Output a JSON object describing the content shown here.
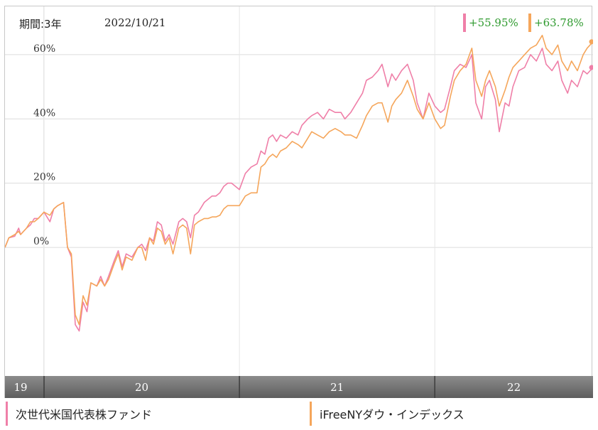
{
  "header": {
    "period_label": "期間:3年",
    "date": "2022/10/21"
  },
  "returns": [
    {
      "label": "+55.95%",
      "color": "#ef7fa8"
    },
    {
      "label": "+63.78%",
      "color": "#f5a65b"
    }
  ],
  "legend": [
    {
      "label": "次世代米国代表株ファンド",
      "color": "#ef7fa8"
    },
    {
      "label": "iFreeNYダウ・インデックス",
      "color": "#f5a65b"
    }
  ],
  "colors": {
    "pink": "#ef7fa8",
    "orange": "#f5a65b",
    "grid": "#dcdcdc",
    "axis_band": "#7a7a7a"
  },
  "chart_data": {
    "type": "line",
    "title": "",
    "xlabel": "",
    "ylabel": "",
    "x_range": [
      2019.8,
      2022.81
    ],
    "ylim": [
      -40,
      75
    ],
    "y_ticks": [
      {
        "value": 0,
        "label": "0%"
      },
      {
        "value": 20,
        "label": "20%"
      },
      {
        "value": 40,
        "label": "40%"
      },
      {
        "value": 60,
        "label": "60%"
      }
    ],
    "x_ticks": [
      {
        "value": 2019.8,
        "label": "19"
      },
      {
        "value": 2020.0,
        "label": "20"
      },
      {
        "value": 2021.0,
        "label": "21"
      },
      {
        "value": 2022.0,
        "label": "22"
      }
    ],
    "grid": true,
    "series": [
      {
        "name": "次世代米国代表株ファンド",
        "color": "#ef7fa8",
        "end_value": 55.95,
        "points": [
          [
            2019.8,
            0
          ],
          [
            2019.82,
            3
          ],
          [
            2019.85,
            3.5
          ],
          [
            2019.87,
            6
          ],
          [
            2019.88,
            4
          ],
          [
            2019.91,
            6
          ],
          [
            2019.93,
            7
          ],
          [
            2019.95,
            9
          ],
          [
            2019.97,
            9
          ],
          [
            2020.0,
            11
          ],
          [
            2020.03,
            8
          ],
          [
            2020.05,
            12
          ],
          [
            2020.07,
            13
          ],
          [
            2020.1,
            14
          ],
          [
            2020.12,
            0
          ],
          [
            2020.14,
            -3
          ],
          [
            2020.16,
            -24
          ],
          [
            2020.18,
            -26
          ],
          [
            2020.2,
            -17
          ],
          [
            2020.22,
            -20
          ],
          [
            2020.24,
            -11
          ],
          [
            2020.27,
            -12
          ],
          [
            2020.29,
            -9
          ],
          [
            2020.31,
            -12
          ],
          [
            2020.33,
            -9
          ],
          [
            2020.36,
            -4
          ],
          [
            2020.38,
            -1
          ],
          [
            2020.4,
            -6
          ],
          [
            2020.42,
            -2
          ],
          [
            2020.45,
            -3
          ],
          [
            2020.48,
            0
          ],
          [
            2020.5,
            1
          ],
          [
            2020.52,
            -1
          ],
          [
            2020.54,
            3
          ],
          [
            2020.56,
            2
          ],
          [
            2020.58,
            8
          ],
          [
            2020.6,
            7
          ],
          [
            2020.62,
            2
          ],
          [
            2020.64,
            4
          ],
          [
            2020.66,
            1
          ],
          [
            2020.69,
            8
          ],
          [
            2020.71,
            9
          ],
          [
            2020.73,
            8
          ],
          [
            2020.75,
            3
          ],
          [
            2020.77,
            10
          ],
          [
            2020.79,
            11
          ],
          [
            2020.82,
            14
          ],
          [
            2020.84,
            15
          ],
          [
            2020.86,
            16
          ],
          [
            2020.88,
            16
          ],
          [
            2020.9,
            17
          ],
          [
            2020.92,
            19
          ],
          [
            2020.94,
            20
          ],
          [
            2020.96,
            20
          ],
          [
            2021.0,
            18
          ],
          [
            2021.03,
            23
          ],
          [
            2021.06,
            25
          ],
          [
            2021.09,
            26
          ],
          [
            2021.11,
            30
          ],
          [
            2021.13,
            29
          ],
          [
            2021.15,
            34
          ],
          [
            2021.17,
            35
          ],
          [
            2021.19,
            33
          ],
          [
            2021.21,
            35
          ],
          [
            2021.24,
            34
          ],
          [
            2021.27,
            36
          ],
          [
            2021.3,
            35
          ],
          [
            2021.32,
            38
          ],
          [
            2021.35,
            40
          ],
          [
            2021.37,
            41
          ],
          [
            2021.4,
            42
          ],
          [
            2021.43,
            40
          ],
          [
            2021.46,
            43
          ],
          [
            2021.49,
            42
          ],
          [
            2021.52,
            42
          ],
          [
            2021.54,
            40
          ],
          [
            2021.57,
            42
          ],
          [
            2021.6,
            45
          ],
          [
            2021.63,
            48
          ],
          [
            2021.65,
            52
          ],
          [
            2021.68,
            53
          ],
          [
            2021.71,
            55
          ],
          [
            2021.73,
            57
          ],
          [
            2021.76,
            50
          ],
          [
            2021.78,
            54
          ],
          [
            2021.8,
            52
          ],
          [
            2021.83,
            55
          ],
          [
            2021.86,
            57
          ],
          [
            2021.89,
            52
          ],
          [
            2021.91,
            45
          ],
          [
            2021.94,
            40
          ],
          [
            2021.97,
            48
          ],
          [
            2022.0,
            44
          ],
          [
            2022.03,
            42
          ],
          [
            2022.05,
            43
          ],
          [
            2022.08,
            50
          ],
          [
            2022.1,
            55
          ],
          [
            2022.13,
            57
          ],
          [
            2022.16,
            56
          ],
          [
            2022.19,
            60
          ],
          [
            2022.21,
            45
          ],
          [
            2022.24,
            40
          ],
          [
            2022.26,
            50
          ],
          [
            2022.28,
            52
          ],
          [
            2022.31,
            46
          ],
          [
            2022.33,
            36
          ],
          [
            2022.36,
            45
          ],
          [
            2022.38,
            44
          ],
          [
            2022.4,
            50
          ],
          [
            2022.43,
            55
          ],
          [
            2022.46,
            56
          ],
          [
            2022.49,
            60
          ],
          [
            2022.52,
            58
          ],
          [
            2022.55,
            62
          ],
          [
            2022.57,
            57
          ],
          [
            2022.6,
            55
          ],
          [
            2022.63,
            58
          ],
          [
            2022.65,
            52
          ],
          [
            2022.68,
            48
          ],
          [
            2022.7,
            52
          ],
          [
            2022.73,
            50
          ],
          [
            2022.76,
            55
          ],
          [
            2022.78,
            54
          ],
          [
            2022.81,
            56
          ]
        ]
      },
      {
        "name": "iFreeNYダウ・インデックス",
        "color": "#f5a65b",
        "end_value": 63.78,
        "points": [
          [
            2019.8,
            0
          ],
          [
            2019.82,
            3
          ],
          [
            2019.85,
            4
          ],
          [
            2019.87,
            5
          ],
          [
            2019.88,
            4
          ],
          [
            2019.91,
            6
          ],
          [
            2019.93,
            8
          ],
          [
            2019.95,
            8
          ],
          [
            2019.97,
            9
          ],
          [
            2020.0,
            11
          ],
          [
            2020.03,
            10
          ],
          [
            2020.05,
            12
          ],
          [
            2020.07,
            13
          ],
          [
            2020.1,
            14
          ],
          [
            2020.12,
            0
          ],
          [
            2020.14,
            -2
          ],
          [
            2020.16,
            -21
          ],
          [
            2020.18,
            -24
          ],
          [
            2020.2,
            -15
          ],
          [
            2020.22,
            -18
          ],
          [
            2020.24,
            -11
          ],
          [
            2020.27,
            -12
          ],
          [
            2020.29,
            -10
          ],
          [
            2020.31,
            -12
          ],
          [
            2020.33,
            -10
          ],
          [
            2020.36,
            -5
          ],
          [
            2020.38,
            -2
          ],
          [
            2020.4,
            -7
          ],
          [
            2020.42,
            -3
          ],
          [
            2020.45,
            -4
          ],
          [
            2020.48,
            0
          ],
          [
            2020.5,
            0
          ],
          [
            2020.52,
            -4
          ],
          [
            2020.54,
            3
          ],
          [
            2020.56,
            1
          ],
          [
            2020.58,
            6
          ],
          [
            2020.6,
            5
          ],
          [
            2020.62,
            1
          ],
          [
            2020.64,
            3
          ],
          [
            2020.66,
            -2
          ],
          [
            2020.69,
            6
          ],
          [
            2020.71,
            7
          ],
          [
            2020.73,
            6
          ],
          [
            2020.75,
            -2
          ],
          [
            2020.77,
            7
          ],
          [
            2020.79,
            8
          ],
          [
            2020.82,
            9
          ],
          [
            2020.84,
            9
          ],
          [
            2020.86,
            9.5
          ],
          [
            2020.88,
            9.5
          ],
          [
            2020.9,
            10
          ],
          [
            2020.92,
            12
          ],
          [
            2020.94,
            13
          ],
          [
            2020.96,
            13
          ],
          [
            2021.0,
            13
          ],
          [
            2021.03,
            16
          ],
          [
            2021.06,
            17
          ],
          [
            2021.09,
            17
          ],
          [
            2021.11,
            25
          ],
          [
            2021.13,
            26
          ],
          [
            2021.15,
            28
          ],
          [
            2021.17,
            29
          ],
          [
            2021.19,
            28
          ],
          [
            2021.21,
            30
          ],
          [
            2021.24,
            31
          ],
          [
            2021.27,
            33
          ],
          [
            2021.3,
            32
          ],
          [
            2021.32,
            31
          ],
          [
            2021.35,
            34
          ],
          [
            2021.37,
            36
          ],
          [
            2021.4,
            35
          ],
          [
            2021.43,
            34
          ],
          [
            2021.46,
            36
          ],
          [
            2021.49,
            37
          ],
          [
            2021.52,
            36
          ],
          [
            2021.54,
            35
          ],
          [
            2021.57,
            35
          ],
          [
            2021.6,
            34
          ],
          [
            2021.63,
            38
          ],
          [
            2021.65,
            41
          ],
          [
            2021.68,
            44
          ],
          [
            2021.71,
            45
          ],
          [
            2021.73,
            45
          ],
          [
            2021.76,
            39
          ],
          [
            2021.78,
            44
          ],
          [
            2021.8,
            46
          ],
          [
            2021.83,
            48
          ],
          [
            2021.86,
            52
          ],
          [
            2021.89,
            47
          ],
          [
            2021.91,
            43
          ],
          [
            2021.94,
            40
          ],
          [
            2021.97,
            45
          ],
          [
            2022.0,
            40
          ],
          [
            2022.03,
            37
          ],
          [
            2022.05,
            38
          ],
          [
            2022.08,
            47
          ],
          [
            2022.1,
            52
          ],
          [
            2022.13,
            55
          ],
          [
            2022.16,
            57
          ],
          [
            2022.19,
            62
          ],
          [
            2022.21,
            52
          ],
          [
            2022.24,
            47
          ],
          [
            2022.26,
            52
          ],
          [
            2022.28,
            55
          ],
          [
            2022.31,
            50
          ],
          [
            2022.33,
            44
          ],
          [
            2022.36,
            49
          ],
          [
            2022.38,
            53
          ],
          [
            2022.4,
            56
          ],
          [
            2022.43,
            58
          ],
          [
            2022.46,
            60
          ],
          [
            2022.49,
            62
          ],
          [
            2022.52,
            63
          ],
          [
            2022.55,
            66
          ],
          [
            2022.57,
            62
          ],
          [
            2022.6,
            60
          ],
          [
            2022.63,
            63
          ],
          [
            2022.65,
            58
          ],
          [
            2022.68,
            55
          ],
          [
            2022.7,
            58
          ],
          [
            2022.73,
            55
          ],
          [
            2022.76,
            60
          ],
          [
            2022.78,
            62
          ],
          [
            2022.81,
            64
          ]
        ]
      }
    ]
  }
}
